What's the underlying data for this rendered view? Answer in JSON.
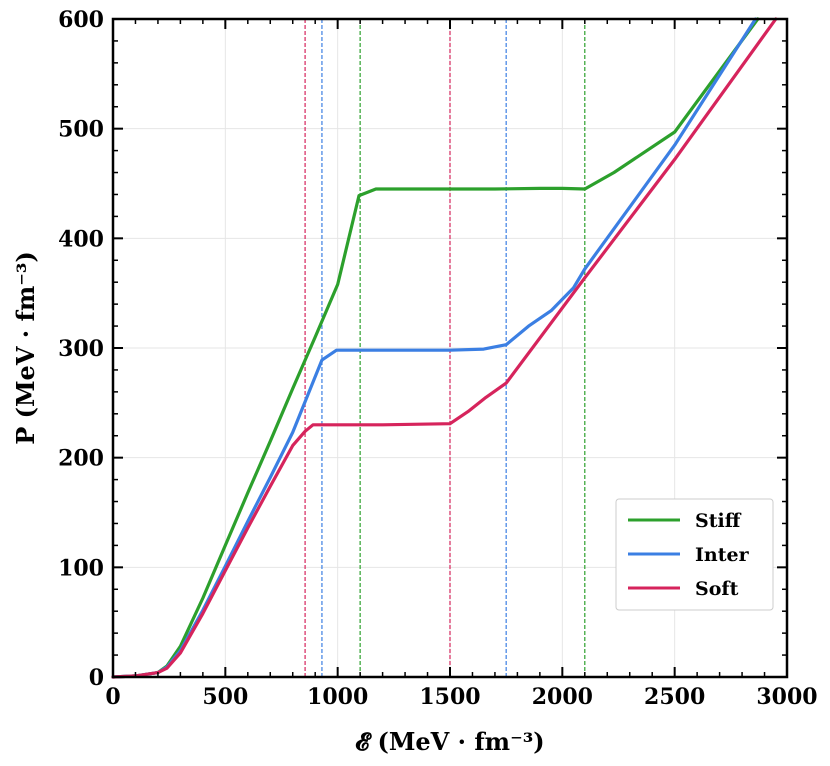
{
  "chart_data": {
    "type": "line",
    "xlabel": "𝓔 (MeV · fm⁻³)",
    "ylabel": "P (MeV · fm⁻³)",
    "xlim": [
      0,
      3000
    ],
    "ylim": [
      0,
      600
    ],
    "x_ticks": [
      0,
      500,
      1000,
      1500,
      2000,
      2500,
      3000
    ],
    "y_ticks": [
      0,
      100,
      200,
      300,
      400,
      500,
      600
    ],
    "grid": true,
    "legend_position": "lower-right",
    "series": [
      {
        "name": "Stiff",
        "color": "#2ca02c",
        "x": [
          0,
          100,
          200,
          240,
          300,
          400,
          500,
          600,
          700,
          800,
          900,
          1000,
          1095,
          1170,
          1300,
          1500,
          1700,
          1900,
          2000,
          2100,
          2230,
          2500,
          2870
        ],
        "y": [
          0,
          1,
          4,
          10,
          28,
          72,
          120,
          168,
          215,
          263,
          310,
          358,
          439,
          445,
          445,
          445,
          445,
          445.5,
          445.5,
          445,
          460,
          497,
          600
        ]
      },
      {
        "name": "Inter",
        "color": "#3b7fe3",
        "x": [
          0,
          100,
          200,
          240,
          300,
          400,
          500,
          600,
          700,
          800,
          930,
          995,
          1200,
          1500,
          1650,
          1750,
          1850,
          1950,
          2050,
          2100,
          2500,
          2860
        ],
        "y": [
          0,
          1,
          4,
          9,
          24,
          61,
          101,
          142,
          182,
          223,
          289,
          298,
          298,
          298,
          299,
          303,
          320,
          334,
          355,
          372,
          485,
          600
        ]
      },
      {
        "name": "Soft",
        "color": "#d6245c",
        "x": [
          0,
          100,
          200,
          240,
          300,
          400,
          500,
          600,
          700,
          800,
          855,
          890,
          1200,
          1500,
          1580,
          1660,
          1750,
          2100,
          2500,
          2950
        ],
        "y": [
          0,
          1,
          4,
          8,
          22,
          58,
          97,
          136,
          174,
          211,
          224,
          230,
          230,
          231,
          242,
          255,
          268,
          364,
          472,
          600
        ]
      }
    ],
    "vlines": [
      {
        "x": 855,
        "color": "#d6245c"
      },
      {
        "x": 1500,
        "color": "#d6245c"
      },
      {
        "x": 930,
        "color": "#3b7fe3"
      },
      {
        "x": 1750,
        "color": "#3b7fe3"
      },
      {
        "x": 1100,
        "color": "#2ca02c"
      },
      {
        "x": 2100,
        "color": "#2ca02c"
      }
    ]
  }
}
